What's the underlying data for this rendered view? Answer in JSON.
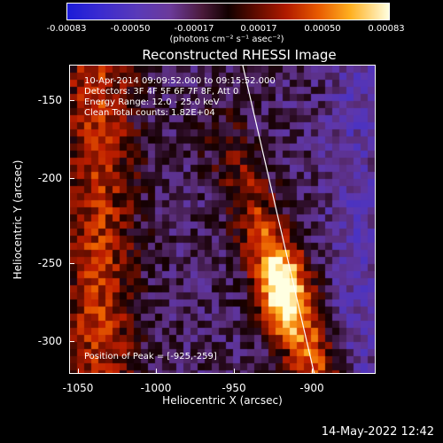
{
  "colorbar": {
    "ticks": [
      "-0.00083",
      "-0.00050",
      "-0.00017",
      "0.00017",
      "0.00050",
      "0.00083"
    ],
    "units": "(photons cm⁻² s⁻¹ asec⁻²)"
  },
  "title": "Reconstructed RHESSI Image",
  "annotations": {
    "time": "10-Apr-2014 09:09:52.000 to 09:15:52.000",
    "detectors": "Detectors: 3F 4F 5F 6F 7F 8F, Att 0",
    "energy": "Energy Range: 12.0 - 25.0 keV",
    "clean": "Clean     Total counts: 1.82E+04",
    "peak": "Position of Peak = [-925,-259]"
  },
  "axes": {
    "xlabel": "Heliocentric X (arcsec)",
    "ylabel": "Heliocentric Y (arcsec)",
    "xticks": [
      "-1050",
      "-1000",
      "-950",
      "-900"
    ],
    "yticks": [
      "-150",
      "-200",
      "-250",
      "-300"
    ]
  },
  "datestamp": "14-May-2022 12:42"
}
